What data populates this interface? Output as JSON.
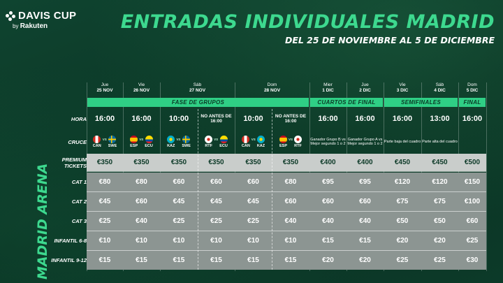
{
  "brand": {
    "name": "DAVIS CUP",
    "by": "by",
    "sponsor": "Rakuten"
  },
  "title": "ENTRADAS INDIVIDUALES MADRID",
  "subtitle": "DEL 25 DE NOVIEMBRE AL 5 DE DICIEMBRE",
  "venue": "MADRID ARENA",
  "colors": {
    "accent": "#3dd98f",
    "phase_bg": "#2fcf85",
    "background": "#0d3a28"
  },
  "days": [
    {
      "dow": "Jue",
      "date": "25 NOV"
    },
    {
      "dow": "Vie",
      "date": "26 NOV"
    },
    {
      "dow": "Sáb",
      "date": "27 NOV"
    },
    {
      "dow": "Dom",
      "date": "28 NOV"
    },
    {
      "dow": "Mier",
      "date": "1 DIC"
    },
    {
      "dow": "Jue",
      "date": "2 DIC"
    },
    {
      "dow": "Vie",
      "date": "3 DIC"
    },
    {
      "dow": "Sáb",
      "date": "4 DIC"
    },
    {
      "dow": "Dom",
      "date": "5 DIC"
    }
  ],
  "phases": [
    "FASE DE GRUPOS",
    "CUARTOS DE FINAL",
    "SEMIFINALES",
    "FINAL"
  ],
  "row_labels": {
    "hora": "HORA",
    "cruce": "CRUCE",
    "premium": "PREMIUM TICKETS",
    "cat1": "CAT 1",
    "cat2": "CAT 2",
    "cat3": "CAT 3",
    "inf68": "INFANTIL 6-8",
    "inf912": "INFANTIL 9-12"
  },
  "sessions": [
    {
      "hora": "16:00",
      "cruce": {
        "a": "CAN",
        "b": "SWE",
        "fa": "can-flag",
        "fb": "swe-flag"
      },
      "vs": "VS",
      "prices": [
        "€350",
        "€80",
        "€45",
        "€25",
        "€10",
        "€15"
      ]
    },
    {
      "hora": "16:00",
      "cruce": {
        "a": "ESP",
        "b": "ECU",
        "fa": "esp-flag",
        "fb": "ecu-flag"
      },
      "vs": "VS",
      "prices": [
        "€350",
        "€80",
        "€60",
        "€40",
        "€10",
        "€15"
      ]
    },
    {
      "hora": "10:00",
      "cruce": {
        "a": "KAZ",
        "b": "SWE",
        "fa": "kaz-flag",
        "fb": "swe-flag"
      },
      "vs": "VS",
      "prices": [
        "€350",
        "€60",
        "€45",
        "€25",
        "€10",
        "€15"
      ]
    },
    {
      "hora": "NO ANTES DE 16:00",
      "cruce": {
        "a": "RTF",
        "b": "ECU",
        "fa": "rtf-flag",
        "fb": "ecu-flag"
      },
      "vs": "VS",
      "prices": [
        "€350",
        "€60",
        "€45",
        "€25",
        "€10",
        "€15"
      ]
    },
    {
      "hora": "10:00",
      "cruce": {
        "a": "CAN",
        "b": "KAZ",
        "fa": "can-flag",
        "fb": "kaz-flag"
      },
      "vs": "VS",
      "prices": [
        "€350",
        "€60",
        "€45",
        "€25",
        "€10",
        "€15"
      ]
    },
    {
      "hora": "NO ANTES DE 16:00",
      "cruce": {
        "a": "ESP",
        "b": "RTF",
        "fa": "esp-flag",
        "fb": "rtf-flag"
      },
      "vs": "VS",
      "prices": [
        "€350",
        "€80",
        "€60",
        "€40",
        "€10",
        "€15"
      ]
    },
    {
      "hora": "16:00",
      "cruce_text": "Ganador Grupo B vs Mejor segundo 1 o 2",
      "prices": [
        "€400",
        "€95",
        "€60",
        "€40",
        "€15",
        "€20"
      ]
    },
    {
      "hora": "16:00",
      "cruce_text": "Ganador Grupo A vs Mejor segundo 1 o 2",
      "prices": [
        "€400",
        "€95",
        "€60",
        "€40",
        "€15",
        "€20"
      ]
    },
    {
      "hora": "16:00",
      "cruce_text": "Parte baja del cuadro",
      "prices": [
        "€450",
        "€120",
        "€75",
        "€50",
        "€20",
        "€25"
      ]
    },
    {
      "hora": "13:00",
      "cruce_text": "Parte alta del cuadro",
      "prices": [
        "€450",
        "€120",
        "€75",
        "€50",
        "€20",
        "€25"
      ]
    },
    {
      "hora": "16:00",
      "cruce_text": "",
      "prices": [
        "€500",
        "€150",
        "€100",
        "€60",
        "€25",
        "€30"
      ]
    }
  ]
}
